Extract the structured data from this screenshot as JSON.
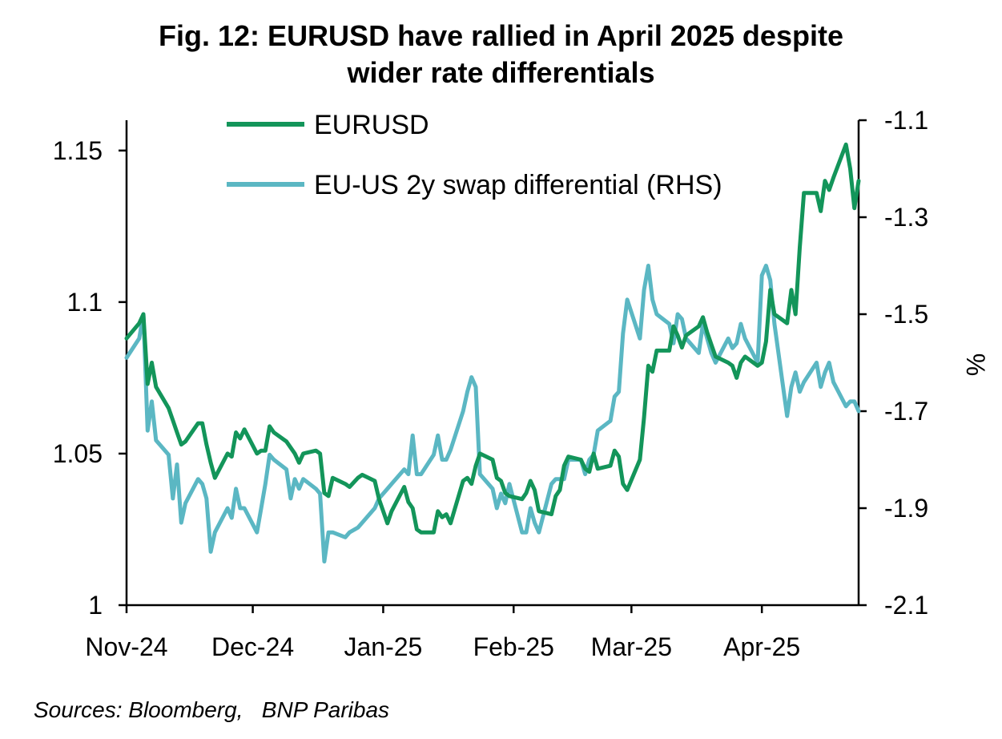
{
  "title_line1": "Fig. 12: EURUSD  have rallied in April 2025 despite",
  "title_line2": "wider rate differentials",
  "source": "Sources: Bloomberg,   BNP Paribas",
  "colors": {
    "eurusd": "#13955a",
    "swap": "#5bb7c3",
    "axis": "#000000"
  },
  "chart_data": {
    "type": "line",
    "x_labels": [
      "Nov-24",
      "Dec-24",
      "Jan-25",
      "Feb-25",
      "Mar-25",
      "Apr-25"
    ],
    "x_tick_dates": [
      "2024-11-01",
      "2024-12-01",
      "2025-01-01",
      "2025-02-01",
      "2025-03-01",
      "2025-04-01"
    ],
    "xlim": [
      "2024-11-01",
      "2025-04-24"
    ],
    "y_left": {
      "ylim": [
        1.0,
        1.16
      ],
      "ticks": [
        1.0,
        1.05,
        1.1,
        1.15
      ],
      "tick_labels": [
        "1",
        "1.05",
        "1.1",
        "1.15"
      ]
    },
    "y_right": {
      "label": "%",
      "ylim": [
        -2.1,
        -1.1
      ],
      "ticks": [
        -1.1,
        -1.3,
        -1.5,
        -1.7,
        -1.9,
        -2.1
      ],
      "tick_labels": [
        "-1.1",
        "-1.3",
        "-1.5",
        "-1.7",
        "-1.9",
        "-2.1"
      ]
    },
    "legend": {
      "placement": "top-left"
    },
    "series": [
      {
        "name": "EURUSD",
        "axis": "left",
        "points": [
          [
            "2024-11-01",
            1.088
          ],
          [
            "2024-11-04",
            1.093
          ],
          [
            "2024-11-05",
            1.096
          ],
          [
            "2024-11-06",
            1.073
          ],
          [
            "2024-11-07",
            1.08
          ],
          [
            "2024-11-08",
            1.072
          ],
          [
            "2024-11-11",
            1.065
          ],
          [
            "2024-11-12",
            1.061
          ],
          [
            "2024-11-13",
            1.057
          ],
          [
            "2024-11-14",
            1.053
          ],
          [
            "2024-11-15",
            1.054
          ],
          [
            "2024-11-18",
            1.06
          ],
          [
            "2024-11-19",
            1.06
          ],
          [
            "2024-11-20",
            1.053
          ],
          [
            "2024-11-21",
            1.047
          ],
          [
            "2024-11-22",
            1.042
          ],
          [
            "2024-11-25",
            1.05
          ],
          [
            "2024-11-26",
            1.049
          ],
          [
            "2024-11-27",
            1.057
          ],
          [
            "2024-11-28",
            1.055
          ],
          [
            "2024-11-29",
            1.058
          ],
          [
            "2024-12-02",
            1.05
          ],
          [
            "2024-12-03",
            1.051
          ],
          [
            "2024-12-04",
            1.051
          ],
          [
            "2024-12-05",
            1.059
          ],
          [
            "2024-12-06",
            1.057
          ],
          [
            "2024-12-09",
            1.054
          ],
          [
            "2024-12-10",
            1.052
          ],
          [
            "2024-12-11",
            1.05
          ],
          [
            "2024-12-12",
            1.047
          ],
          [
            "2024-12-13",
            1.05
          ],
          [
            "2024-12-16",
            1.051
          ],
          [
            "2024-12-17",
            1.05
          ],
          [
            "2024-12-18",
            1.037
          ],
          [
            "2024-12-19",
            1.036
          ],
          [
            "2024-12-20",
            1.042
          ],
          [
            "2024-12-23",
            1.04
          ],
          [
            "2024-12-24",
            1.039
          ],
          [
            "2024-12-26",
            1.042
          ],
          [
            "2024-12-27",
            1.043
          ],
          [
            "2024-12-30",
            1.041
          ],
          [
            "2024-12-31",
            1.035
          ],
          [
            "2025-01-02",
            1.027
          ],
          [
            "2025-01-03",
            1.031
          ],
          [
            "2025-01-06",
            1.039
          ],
          [
            "2025-01-07",
            1.034
          ],
          [
            "2025-01-08",
            1.032
          ],
          [
            "2025-01-09",
            1.025
          ],
          [
            "2025-01-10",
            1.024
          ],
          [
            "2025-01-13",
            1.024
          ],
          [
            "2025-01-14",
            1.031
          ],
          [
            "2025-01-15",
            1.029
          ],
          [
            "2025-01-16",
            1.03
          ],
          [
            "2025-01-17",
            1.027
          ],
          [
            "2025-01-20",
            1.041
          ],
          [
            "2025-01-21",
            1.042
          ],
          [
            "2025-01-22",
            1.04
          ],
          [
            "2025-01-23",
            1.046
          ],
          [
            "2025-01-24",
            1.05
          ],
          [
            "2025-01-27",
            1.048
          ],
          [
            "2025-01-28",
            1.042
          ],
          [
            "2025-01-29",
            1.041
          ],
          [
            "2025-01-30",
            1.037
          ],
          [
            "2025-01-31",
            1.036
          ],
          [
            "2025-02-03",
            1.035
          ],
          [
            "2025-02-04",
            1.037
          ],
          [
            "2025-02-05",
            1.041
          ],
          [
            "2025-02-06",
            1.038
          ],
          [
            "2025-02-07",
            1.031
          ],
          [
            "2025-02-10",
            1.03
          ],
          [
            "2025-02-11",
            1.036
          ],
          [
            "2025-02-12",
            1.038
          ],
          [
            "2025-02-13",
            1.046
          ],
          [
            "2025-02-14",
            1.049
          ],
          [
            "2025-02-17",
            1.048
          ],
          [
            "2025-02-18",
            1.045
          ],
          [
            "2025-02-19",
            1.044
          ],
          [
            "2025-02-20",
            1.05
          ],
          [
            "2025-02-21",
            1.045
          ],
          [
            "2025-02-24",
            1.046
          ],
          [
            "2025-02-25",
            1.051
          ],
          [
            "2025-02-26",
            1.049
          ],
          [
            "2025-02-27",
            1.04
          ],
          [
            "2025-02-28",
            1.038
          ],
          [
            "2025-03-03",
            1.048
          ],
          [
            "2025-03-04",
            1.062
          ],
          [
            "2025-03-05",
            1.079
          ],
          [
            "2025-03-06",
            1.077
          ],
          [
            "2025-03-07",
            1.084
          ],
          [
            "2025-03-10",
            1.084
          ],
          [
            "2025-03-11",
            1.092
          ],
          [
            "2025-03-12",
            1.089
          ],
          [
            "2025-03-13",
            1.085
          ],
          [
            "2025-03-14",
            1.089
          ],
          [
            "2025-03-17",
            1.092
          ],
          [
            "2025-03-18",
            1.095
          ],
          [
            "2025-03-19",
            1.09
          ],
          [
            "2025-03-20",
            1.086
          ],
          [
            "2025-03-21",
            1.082
          ],
          [
            "2025-03-24",
            1.08
          ],
          [
            "2025-03-25",
            1.079
          ],
          [
            "2025-03-26",
            1.075
          ],
          [
            "2025-03-27",
            1.08
          ],
          [
            "2025-03-28",
            1.082
          ],
          [
            "2025-03-31",
            1.079
          ],
          [
            "2025-04-01",
            1.08
          ],
          [
            "2025-04-02",
            1.087
          ],
          [
            "2025-04-03",
            1.104
          ],
          [
            "2025-04-04",
            1.096
          ],
          [
            "2025-04-07",
            1.093
          ],
          [
            "2025-04-08",
            1.104
          ],
          [
            "2025-04-09",
            1.096
          ],
          [
            "2025-04-10",
            1.118
          ],
          [
            "2025-04-11",
            1.136
          ],
          [
            "2025-04-14",
            1.136
          ],
          [
            "2025-04-15",
            1.13
          ],
          [
            "2025-04-16",
            1.14
          ],
          [
            "2025-04-17",
            1.137
          ],
          [
            "2025-04-18",
            1.141
          ],
          [
            "2025-04-21",
            1.152
          ],
          [
            "2025-04-22",
            1.144
          ],
          [
            "2025-04-23",
            1.131
          ],
          [
            "2025-04-24",
            1.14
          ]
        ]
      },
      {
        "name": "EU-US 2y swap differential (RHS)",
        "axis": "right",
        "points": [
          [
            "2024-11-01",
            -1.59
          ],
          [
            "2024-11-04",
            -1.55
          ],
          [
            "2024-11-05",
            -1.5
          ],
          [
            "2024-11-06",
            -1.74
          ],
          [
            "2024-11-07",
            -1.68
          ],
          [
            "2024-11-08",
            -1.76
          ],
          [
            "2024-11-11",
            -1.79
          ],
          [
            "2024-11-12",
            -1.88
          ],
          [
            "2024-11-13",
            -1.81
          ],
          [
            "2024-11-14",
            -1.93
          ],
          [
            "2024-11-15",
            -1.89
          ],
          [
            "2024-11-18",
            -1.84
          ],
          [
            "2024-11-19",
            -1.85
          ],
          [
            "2024-11-20",
            -1.88
          ],
          [
            "2024-11-21",
            -1.99
          ],
          [
            "2024-11-22",
            -1.95
          ],
          [
            "2024-11-25",
            -1.9
          ],
          [
            "2024-11-26",
            -1.92
          ],
          [
            "2024-11-27",
            -1.86
          ],
          [
            "2024-11-28",
            -1.9
          ],
          [
            "2024-11-29",
            -1.9
          ],
          [
            "2024-12-02",
            -1.95
          ],
          [
            "2024-12-03",
            -1.9
          ],
          [
            "2024-12-04",
            -1.85
          ],
          [
            "2024-12-05",
            -1.79
          ],
          [
            "2024-12-06",
            -1.8
          ],
          [
            "2024-12-09",
            -1.82
          ],
          [
            "2024-12-10",
            -1.88
          ],
          [
            "2024-12-11",
            -1.84
          ],
          [
            "2024-12-12",
            -1.86
          ],
          [
            "2024-12-13",
            -1.84
          ],
          [
            "2024-12-16",
            -1.86
          ],
          [
            "2024-12-17",
            -1.87
          ],
          [
            "2024-12-18",
            -2.01
          ],
          [
            "2024-12-19",
            -1.95
          ],
          [
            "2024-12-20",
            -1.95
          ],
          [
            "2024-12-23",
            -1.96
          ],
          [
            "2024-12-24",
            -1.95
          ],
          [
            "2024-12-26",
            -1.94
          ],
          [
            "2024-12-27",
            -1.93
          ],
          [
            "2024-12-30",
            -1.9
          ],
          [
            "2024-12-31",
            -1.88
          ],
          [
            "2025-01-02",
            -1.86
          ],
          [
            "2025-01-03",
            -1.85
          ],
          [
            "2025-01-06",
            -1.82
          ],
          [
            "2025-01-07",
            -1.83
          ],
          [
            "2025-01-08",
            -1.75
          ],
          [
            "2025-01-09",
            -1.83
          ],
          [
            "2025-01-10",
            -1.83
          ],
          [
            "2025-01-13",
            -1.79
          ],
          [
            "2025-01-14",
            -1.75
          ],
          [
            "2025-01-15",
            -1.8
          ],
          [
            "2025-01-16",
            -1.8
          ],
          [
            "2025-01-17",
            -1.78
          ],
          [
            "2025-01-20",
            -1.7
          ],
          [
            "2025-01-21",
            -1.66
          ],
          [
            "2025-01-22",
            -1.63
          ],
          [
            "2025-01-23",
            -1.65
          ],
          [
            "2025-01-24",
            -1.83
          ],
          [
            "2025-01-27",
            -1.86
          ],
          [
            "2025-01-28",
            -1.9
          ],
          [
            "2025-01-29",
            -1.87
          ],
          [
            "2025-01-30",
            -1.89
          ],
          [
            "2025-01-31",
            -1.85
          ],
          [
            "2025-02-03",
            -1.95
          ],
          [
            "2025-02-04",
            -1.95
          ],
          [
            "2025-02-05",
            -1.9
          ],
          [
            "2025-02-06",
            -1.93
          ],
          [
            "2025-02-07",
            -1.95
          ],
          [
            "2025-02-10",
            -1.85
          ],
          [
            "2025-02-11",
            -1.84
          ],
          [
            "2025-02-12",
            -1.84
          ],
          [
            "2025-02-13",
            -1.84
          ],
          [
            "2025-02-14",
            -1.8
          ],
          [
            "2025-02-17",
            -1.8
          ],
          [
            "2025-02-18",
            -1.83
          ],
          [
            "2025-02-19",
            -1.8
          ],
          [
            "2025-02-20",
            -1.79
          ],
          [
            "2025-02-21",
            -1.74
          ],
          [
            "2025-02-24",
            -1.72
          ],
          [
            "2025-02-25",
            -1.67
          ],
          [
            "2025-02-26",
            -1.66
          ],
          [
            "2025-02-27",
            -1.54
          ],
          [
            "2025-02-28",
            -1.47
          ],
          [
            "2025-03-03",
            -1.55
          ],
          [
            "2025-03-04",
            -1.45
          ],
          [
            "2025-03-05",
            -1.4
          ],
          [
            "2025-03-06",
            -1.47
          ],
          [
            "2025-03-07",
            -1.5
          ],
          [
            "2025-03-10",
            -1.52
          ],
          [
            "2025-03-11",
            -1.56
          ],
          [
            "2025-03-12",
            -1.5
          ],
          [
            "2025-03-13",
            -1.51
          ],
          [
            "2025-03-14",
            -1.55
          ],
          [
            "2025-03-17",
            -1.58
          ],
          [
            "2025-03-18",
            -1.52
          ],
          [
            "2025-03-19",
            -1.55
          ],
          [
            "2025-03-20",
            -1.58
          ],
          [
            "2025-03-21",
            -1.6
          ],
          [
            "2025-03-24",
            -1.55
          ],
          [
            "2025-03-25",
            -1.57
          ],
          [
            "2025-03-26",
            -1.56
          ],
          [
            "2025-03-27",
            -1.52
          ],
          [
            "2025-03-28",
            -1.55
          ],
          [
            "2025-03-31",
            -1.6
          ],
          [
            "2025-04-01",
            -1.42
          ],
          [
            "2025-04-02",
            -1.4
          ],
          [
            "2025-04-03",
            -1.43
          ],
          [
            "2025-04-04",
            -1.52
          ],
          [
            "2025-04-07",
            -1.71
          ],
          [
            "2025-04-08",
            -1.65
          ],
          [
            "2025-04-09",
            -1.62
          ],
          [
            "2025-04-10",
            -1.66
          ],
          [
            "2025-04-11",
            -1.64
          ],
          [
            "2025-04-14",
            -1.6
          ],
          [
            "2025-04-15",
            -1.65
          ],
          [
            "2025-04-16",
            -1.62
          ],
          [
            "2025-04-17",
            -1.6
          ],
          [
            "2025-04-18",
            -1.64
          ],
          [
            "2025-04-21",
            -1.69
          ],
          [
            "2025-04-22",
            -1.68
          ],
          [
            "2025-04-23",
            -1.68
          ],
          [
            "2025-04-24",
            -1.7
          ]
        ]
      }
    ]
  }
}
